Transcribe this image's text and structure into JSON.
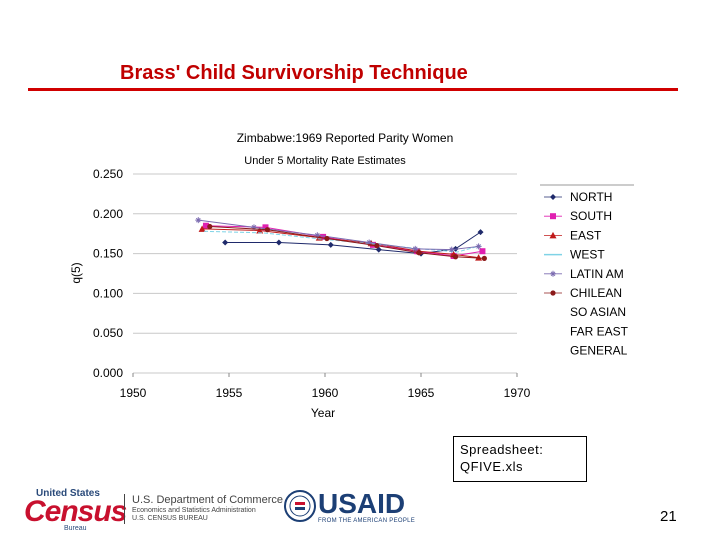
{
  "slide": {
    "title": "Brass' Child Survivorship Technique",
    "page_number": "21",
    "accent_color": "#d00000"
  },
  "callout": {
    "line1": "Spreadsheet:",
    "line2": "QFIVE.xls"
  },
  "footer": {
    "census_top": "United States",
    "census_word": "Census",
    "census_bureau": "Bureau",
    "commerce_line1": "U.S. Department of Commerce",
    "commerce_line2": "Economics and Statistics Administration",
    "commerce_line3": "U.S. CENSUS BUREAU",
    "usaid_word": "USAID",
    "usaid_tag": "FROM THE AMERICAN PEOPLE"
  },
  "chart_data": {
    "type": "scatter",
    "title": "Zimbabwe:1969 Reported Parity Women",
    "subtitle": "Under 5 Mortality Rate Estimates",
    "xlabel": "Year",
    "ylabel": "q(5)",
    "xlim": [
      1950,
      1970
    ],
    "ylim": [
      0.0,
      0.25
    ],
    "xticks": [
      "1950",
      "1955",
      "1960",
      "1965",
      "1970"
    ],
    "yticks": [
      "0.000",
      "0.050",
      "0.100",
      "0.150",
      "0.200",
      "0.250"
    ],
    "grid": true,
    "legend_position": "right",
    "series": [
      {
        "name": "NORTH",
        "marker": "diamond",
        "color": "#1f2a6b",
        "x": [
          1954.8,
          1957.6,
          1960.3,
          1962.8,
          1965.0,
          1966.8,
          1968.1
        ],
        "y": [
          0.164,
          0.164,
          0.161,
          0.155,
          0.15,
          0.156,
          0.177
        ]
      },
      {
        "name": "SOUTH",
        "marker": "square",
        "color": "#e020b0",
        "x": [
          1953.8,
          1956.9,
          1959.9,
          1962.5,
          1964.8,
          1966.7,
          1968.2
        ],
        "y": [
          0.185,
          0.183,
          0.171,
          0.161,
          0.153,
          0.147,
          0.153
        ]
      },
      {
        "name": "EAST",
        "marker": "triangle",
        "color": "#c01a1a",
        "x": [
          1953.6,
          1956.6,
          1959.7,
          1962.4,
          1964.9,
          1966.7,
          1968.0
        ],
        "y": [
          0.181,
          0.179,
          0.17,
          0.163,
          0.153,
          0.149,
          0.145
        ]
      },
      {
        "name": "WEST",
        "marker": "none",
        "color": "#7fd3e6",
        "x": [
          1953.7,
          1956.8,
          1959.9,
          1962.6,
          1965.0,
          1966.9,
          1968.1
        ],
        "y": [
          0.178,
          0.176,
          0.168,
          0.162,
          0.156,
          0.152,
          0.16
        ]
      },
      {
        "name": "LATIN AM",
        "marker": "star",
        "color": "#7b6bb0",
        "x": [
          1953.4,
          1956.3,
          1959.6,
          1962.3,
          1964.7,
          1966.6,
          1968.0
        ],
        "y": [
          0.192,
          0.183,
          0.173,
          0.164,
          0.156,
          0.155,
          0.159
        ]
      },
      {
        "name": "CHILEAN",
        "marker": "circle",
        "color": "#8b1a1a",
        "x": [
          1954.0,
          1957.0,
          1960.1,
          1962.7,
          1964.9,
          1966.8,
          1968.3
        ],
        "y": [
          0.184,
          0.18,
          0.169,
          0.16,
          0.151,
          0.146,
          0.144
        ]
      },
      {
        "name": "SO ASIAN",
        "marker": "none",
        "color": "#ffffff",
        "x": [],
        "y": []
      },
      {
        "name": "FAR EAST",
        "marker": "none",
        "color": "#ffffff",
        "x": [],
        "y": []
      },
      {
        "name": "GENERAL",
        "marker": "none",
        "color": "#ffffff",
        "x": [],
        "y": []
      }
    ]
  }
}
